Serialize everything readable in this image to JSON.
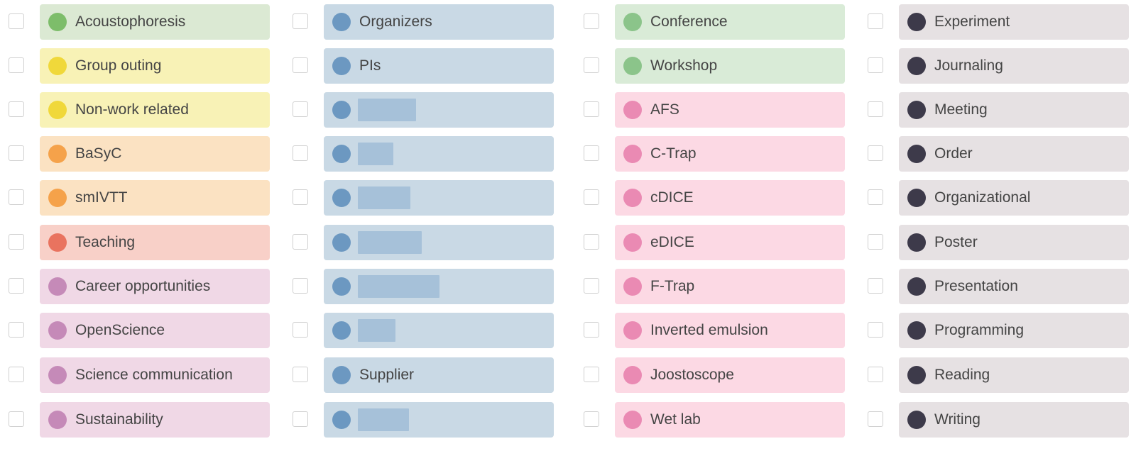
{
  "colors": {
    "green_bg": "#dbe9d3",
    "green_dot": "#7dbd6a",
    "yellow_bg": "#f8f2b6",
    "yellow_dot": "#f0d83a",
    "orange_bg": "#fbe2c2",
    "orange_dot": "#f5a24a",
    "salmon_bg": "#f8d0c8",
    "salmon_dot": "#e9735f",
    "purple_bg": "#f0d8e6",
    "purple_dot": "#c58ab8",
    "blue_bg": "#c9d9e5",
    "blue_dot": "#6c98c1",
    "redact": "#a6c1d9",
    "lightgreen_bg": "#d9ebd7",
    "lightgreen_dot": "#8bc48a",
    "pink_bg": "#fcd9e4",
    "pink_dot": "#ea8ab3",
    "gray_bg": "#e6e1e3",
    "dark_dot": "#3d3a4a"
  },
  "columns": [
    {
      "items": [
        {
          "label": "Acoustophoresis",
          "bg": "#dbe9d3",
          "dot": "#7dbd6a"
        },
        {
          "label": "Group outing",
          "bg": "#f8f2b6",
          "dot": "#f0d83a"
        },
        {
          "label": "Non-work related",
          "bg": "#f8f2b6",
          "dot": "#f0d83a"
        },
        {
          "label": "BaSyC",
          "bg": "#fbe2c2",
          "dot": "#f5a24a"
        },
        {
          "label": "smIVTT",
          "bg": "#fbe2c2",
          "dot": "#f5a24a"
        },
        {
          "label": "Teaching",
          "bg": "#f8d0c8",
          "dot": "#e9735f"
        },
        {
          "label": "Career opportunities",
          "bg": "#f0d8e6",
          "dot": "#c58ab8"
        },
        {
          "label": "OpenScience",
          "bg": "#f0d8e6",
          "dot": "#c58ab8"
        },
        {
          "label": "Science communication",
          "bg": "#f0d8e6",
          "dot": "#c58ab8"
        },
        {
          "label": "Sustainability",
          "bg": "#f0d8e6",
          "dot": "#c58ab8"
        }
      ]
    },
    {
      "items": [
        {
          "label": "Organizers",
          "bg": "#c9d9e5",
          "dot": "#6c98c1"
        },
        {
          "label": "PIs",
          "bg": "#c9d9e5",
          "dot": "#6c98c1"
        },
        {
          "label": "",
          "bg": "#c9d9e5",
          "dot": "#6c98c1",
          "redacted": true
        },
        {
          "label": "",
          "bg": "#c9d9e5",
          "dot": "#6c98c1",
          "redacted": true
        },
        {
          "label": "",
          "bg": "#c9d9e5",
          "dot": "#6c98c1",
          "redacted": true
        },
        {
          "label": "",
          "bg": "#c9d9e5",
          "dot": "#6c98c1",
          "redacted": true
        },
        {
          "label": "",
          "bg": "#c9d9e5",
          "dot": "#6c98c1",
          "redacted": true
        },
        {
          "label": "",
          "bg": "#c9d9e5",
          "dot": "#6c98c1",
          "redacted": true
        },
        {
          "label": "Supplier",
          "bg": "#c9d9e5",
          "dot": "#6c98c1"
        },
        {
          "label": "",
          "bg": "#c9d9e5",
          "dot": "#6c98c1",
          "redacted": true
        }
      ]
    },
    {
      "items": [
        {
          "label": "Conference",
          "bg": "#d9ebd7",
          "dot": "#8bc48a"
        },
        {
          "label": "Workshop",
          "bg": "#d9ebd7",
          "dot": "#8bc48a"
        },
        {
          "label": "AFS",
          "bg": "#fcd9e4",
          "dot": "#ea8ab3"
        },
        {
          "label": "C-Trap",
          "bg": "#fcd9e4",
          "dot": "#ea8ab3"
        },
        {
          "label": "cDICE",
          "bg": "#fcd9e4",
          "dot": "#ea8ab3"
        },
        {
          "label": "eDICE",
          "bg": "#fcd9e4",
          "dot": "#ea8ab3"
        },
        {
          "label": "F-Trap",
          "bg": "#fcd9e4",
          "dot": "#ea8ab3"
        },
        {
          "label": "Inverted emulsion",
          "bg": "#fcd9e4",
          "dot": "#ea8ab3"
        },
        {
          "label": "Joostoscope",
          "bg": "#fcd9e4",
          "dot": "#ea8ab3"
        },
        {
          "label": "Wet lab",
          "bg": "#fcd9e4",
          "dot": "#ea8ab3"
        }
      ]
    },
    {
      "items": [
        {
          "label": "Experiment",
          "bg": "#e6e1e3",
          "dot": "#3d3a4a"
        },
        {
          "label": "Journaling",
          "bg": "#e6e1e3",
          "dot": "#3d3a4a"
        },
        {
          "label": "Meeting",
          "bg": "#e6e1e3",
          "dot": "#3d3a4a"
        },
        {
          "label": "Order",
          "bg": "#e6e1e3",
          "dot": "#3d3a4a"
        },
        {
          "label": "Organizational",
          "bg": "#e6e1e3",
          "dot": "#3d3a4a"
        },
        {
          "label": "Poster",
          "bg": "#e6e1e3",
          "dot": "#3d3a4a"
        },
        {
          "label": "Presentation",
          "bg": "#e6e1e3",
          "dot": "#3d3a4a"
        },
        {
          "label": "Programming",
          "bg": "#e6e1e3",
          "dot": "#3d3a4a"
        },
        {
          "label": "Reading",
          "bg": "#e6e1e3",
          "dot": "#3d3a4a"
        },
        {
          "label": "Writing",
          "bg": "#e6e1e3",
          "dot": "#3d3a4a"
        }
      ]
    }
  ]
}
